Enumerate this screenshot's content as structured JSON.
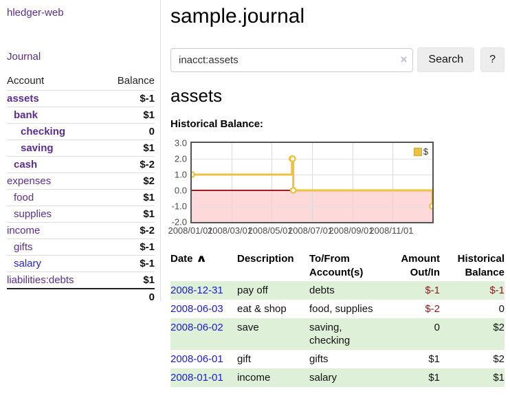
{
  "colors": {
    "link_purple": "#5c2d91",
    "link_blue": "#2222dd",
    "negative_bold": "#801515",
    "negative_light": "#b96f6f",
    "negative_table": "#8e1b1b",
    "row_stripe_green": "#dff0d8",
    "chart_series_gold": "#EDC240",
    "chart_negative_fill": "#fdd9d9",
    "chart_zero_line": "#9b1c1c"
  },
  "sidebar": {
    "app_title": "hledger-web",
    "journal_link": "Journal",
    "accounts_table": {
      "headers": {
        "account": "Account",
        "balance": "Balance"
      },
      "rows": [
        {
          "name": "assets",
          "indent": 0,
          "bold": true,
          "link": "purple",
          "balance": "$-1",
          "balance_style": "neg-bold"
        },
        {
          "name": "bank",
          "indent": 1,
          "bold": true,
          "link": "purple",
          "balance": "$1",
          "balance_style": "pos"
        },
        {
          "name": "checking",
          "indent": 2,
          "bold": true,
          "link": "purple",
          "balance": "0",
          "balance_style": "pos"
        },
        {
          "name": "saving",
          "indent": 2,
          "bold": true,
          "link": "purple",
          "balance": "$1",
          "balance_style": "pos"
        },
        {
          "name": "cash",
          "indent": 1,
          "bold": true,
          "link": "purple",
          "balance": "$-2",
          "balance_style": "neg-bold"
        },
        {
          "name": "expenses",
          "indent": 0,
          "bold": false,
          "link": "purple",
          "balance": "$2",
          "balance_style": "pos"
        },
        {
          "name": "food",
          "indent": 1,
          "bold": false,
          "link": "purple",
          "balance": "$1",
          "balance_style": "pos"
        },
        {
          "name": "supplies",
          "indent": 1,
          "bold": false,
          "link": "purple",
          "balance": "$1",
          "balance_style": "pos"
        },
        {
          "name": "income",
          "indent": 0,
          "bold": false,
          "link": "purple",
          "balance": "$-2",
          "balance_style": "neg-light"
        },
        {
          "name": "gifts",
          "indent": 1,
          "bold": false,
          "link": "purple",
          "balance": "$-1",
          "balance_style": "neg-light"
        },
        {
          "name": "salary",
          "indent": 1,
          "bold": false,
          "link": "blue",
          "balance": "$-1",
          "balance_style": "neg-light"
        },
        {
          "name": "liabilities:debts",
          "indent": 0,
          "bold": false,
          "link": "purple",
          "balance": "$1",
          "balance_style": "pos"
        }
      ],
      "total": "0"
    }
  },
  "header": {
    "title": "sample.journal"
  },
  "search": {
    "value": "inacct:assets",
    "clear_icon": "×",
    "button_label": "Search",
    "help_label": "?"
  },
  "account_page": {
    "heading": "assets",
    "chart_title": "Historical Balance:"
  },
  "chart_data": {
    "type": "line",
    "title": "Historical Balance",
    "step": true,
    "series": [
      {
        "name": "$",
        "color": "#EDC240",
        "points": [
          [
            "2008-01-01",
            1
          ],
          [
            "2008-06-01",
            2
          ],
          [
            "2008-06-02",
            2
          ],
          [
            "2008-06-03",
            0
          ],
          [
            "2008-12-31",
            -1
          ]
        ]
      }
    ],
    "x_range": [
      "2008-01-01",
      "2008-12-31"
    ],
    "ylim": [
      -2,
      3
    ],
    "yticks": [
      3.0,
      2.0,
      1.0,
      0.0,
      -1.0,
      -2.0
    ],
    "xtick_labels": [
      "2008/01/01",
      "2008/03/01",
      "2008/05/01",
      "2008/07/01",
      "2008/09/01",
      "2008/11/01"
    ],
    "grid": true,
    "legend_position": "top-right",
    "zero_line": true,
    "negative_region_shaded": true
  },
  "register_table": {
    "headers": {
      "date": "Date",
      "sort_icon": "∧",
      "description": "Description",
      "accounts": "To/From\nAccount(s)",
      "amount": "Amount\nOut/In",
      "balance": "Historical\nBalance"
    },
    "rows": [
      {
        "date": "2008-12-31",
        "description": "pay off",
        "accounts": "debts",
        "amount": "$-1",
        "balance": "$-1"
      },
      {
        "date": "2008-06-03",
        "description": "eat & shop",
        "accounts": "food, supplies",
        "amount": "$-2",
        "balance": "0"
      },
      {
        "date": "2008-06-02",
        "description": "save",
        "accounts": "saving,\nchecking",
        "amount": "0",
        "balance": "$2"
      },
      {
        "date": "2008-06-01",
        "description": "gift",
        "accounts": "gifts",
        "amount": "$1",
        "balance": "$2"
      },
      {
        "date": "2008-01-01",
        "description": "income",
        "accounts": "salary",
        "amount": "$1",
        "balance": "$1"
      }
    ]
  }
}
